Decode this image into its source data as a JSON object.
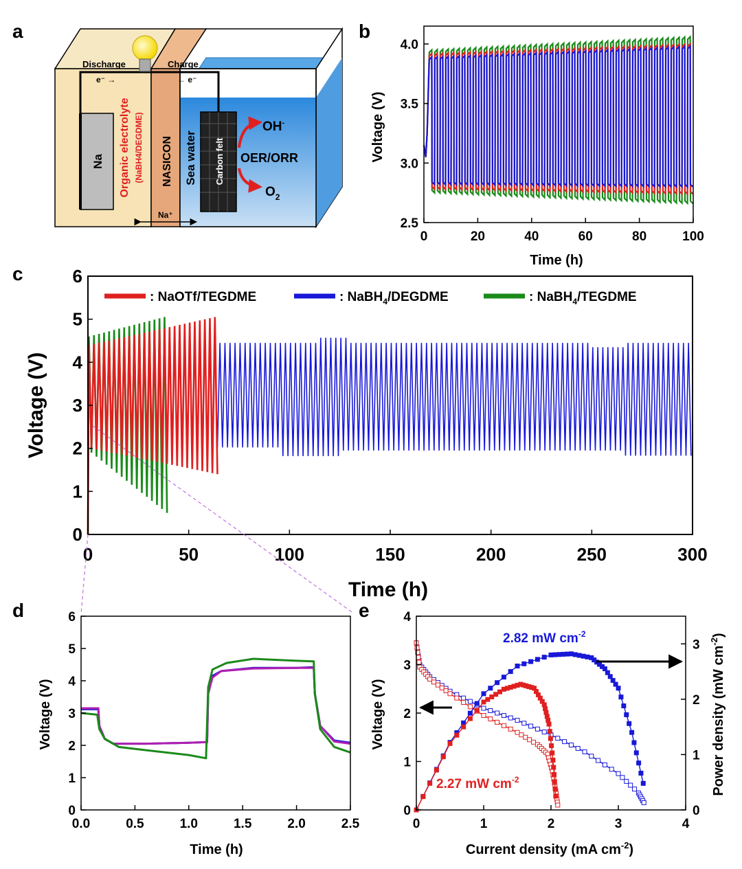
{
  "panels": {
    "a": "a",
    "b": "b",
    "c": "c",
    "d": "d",
    "e": "e"
  },
  "schematic": {
    "discharge": "Discharge",
    "charge": "Charge",
    "electron_left": "e⁻ →",
    "electron_right": "← e⁻",
    "na_electrode": "Na",
    "organic_electrolyte": "Organic electrolyte",
    "organic_electrolyte_sub": "(NaBH4/DEGDME)",
    "nasicon": "NASICON",
    "seawater": "Sea water",
    "carbon_felt": "Carbon felt",
    "oh": "OH",
    "oh_sup": "-",
    "reaction": "OER/ORR",
    "o2": "O",
    "o2_sub": "2",
    "na_ion": "Na⁺",
    "colors": {
      "organic": "#f7e3b5",
      "nasicon": "#e6a77a",
      "water": "#3d96dc",
      "red": "#e02020"
    }
  },
  "chart_data": [
    {
      "id": "b",
      "type": "line",
      "title": "",
      "xlabel": "Time (h)",
      "ylabel": "Voltage (V)",
      "xlim": [
        0,
        100
      ],
      "ylim": [
        2.5,
        4.15
      ],
      "xticks": [
        "0",
        "20",
        "40",
        "60",
        "80",
        "100"
      ],
      "yticks": [
        "2.5",
        "3.0",
        "3.5",
        "4.0"
      ],
      "series": [
        {
          "name": "NaBH4/TEGDME",
          "color": "#1a8a1a",
          "charge_v": [
            3.93,
            4.04
          ],
          "discharge_v": [
            2.77,
            2.68
          ],
          "cycles": 48
        },
        {
          "name": "NaOTf/TEGDME",
          "color": "#e02020",
          "charge_v": [
            3.9,
            3.98
          ],
          "discharge_v": [
            2.8,
            2.76
          ],
          "cycles": 48
        },
        {
          "name": "NaBH4/DEGDME",
          "color": "#1818d8",
          "charge_v": [
            3.87,
            3.96
          ],
          "discharge_v": [
            2.84,
            2.82
          ],
          "cycles": 48
        }
      ]
    },
    {
      "id": "c",
      "type": "line",
      "title": "",
      "xlabel": "Time (h)",
      "ylabel": "Voltage (V)",
      "xlim": [
        0,
        300
      ],
      "ylim": [
        0,
        6
      ],
      "xticks": [
        "0",
        "50",
        "100",
        "150",
        "200",
        "250",
        "300"
      ],
      "yticks": [
        "0",
        "1",
        "2",
        "3",
        "4",
        "5",
        "6"
      ],
      "legend": [
        {
          "label": ": NaOTf/TEGDME",
          "color": "#e02020"
        },
        {
          "label": ": NaBH",
          "sub": "4",
          "tail": "/DEGDME",
          "color": "#1818d8"
        },
        {
          "label": ": NaBH",
          "sub": "4",
          "tail": "/TEGDME",
          "color": "#1a8a1a"
        }
      ],
      "series": [
        {
          "name": "NaBH4/DEGDME",
          "color": "#1818d8",
          "end_h": 300,
          "charge_v": [
            4.4,
            4.45
          ],
          "discharge_v": [
            2.0,
            1.85
          ]
        },
        {
          "name": "NaBH4/TEGDME",
          "color": "#1a8a1a",
          "end_h": 40,
          "charge_v": [
            4.6,
            5.05
          ],
          "discharge_v": [
            1.9,
            0.5
          ]
        },
        {
          "name": "NaOTf/TEGDME",
          "color": "#e02020",
          "end_h": 66,
          "charge_v": [
            4.4,
            5.05
          ],
          "discharge_v": [
            2.0,
            1.4
          ]
        }
      ]
    },
    {
      "id": "d",
      "type": "line",
      "title": "",
      "xlabel": "Time (h)",
      "ylabel": "Voltage (V)",
      "xlim": [
        0,
        2.5
      ],
      "ylim": [
        0,
        6
      ],
      "xticks": [
        "0.0",
        "0.5",
        "1.0",
        "1.5",
        "2.0",
        "2.5"
      ],
      "yticks": [
        "0",
        "1",
        "2",
        "3",
        "4",
        "5",
        "6"
      ],
      "series": [
        {
          "name": "NaBH4/DEGDME",
          "color": "#1818d8",
          "x": [
            0,
            0.16,
            0.17,
            0.22,
            0.3,
            0.6,
            1.0,
            1.17,
            1.18,
            1.22,
            1.3,
            1.6,
            2.0,
            2.16,
            2.17,
            2.22,
            2.35,
            2.5
          ],
          "y": [
            3.12,
            3.12,
            2.6,
            2.2,
            2.05,
            2.05,
            2.08,
            2.1,
            3.6,
            4.15,
            4.3,
            4.4,
            4.4,
            4.42,
            3.6,
            2.6,
            2.15,
            2.08
          ]
        },
        {
          "name": "NaOTf/TEGDME",
          "color": "#b020b0",
          "x": [
            0,
            0.16,
            0.17,
            0.22,
            0.3,
            0.6,
            1.0,
            1.17,
            1.18,
            1.22,
            1.3,
            1.6,
            2.0,
            2.16,
            2.17,
            2.22,
            2.35,
            2.5
          ],
          "y": [
            3.15,
            3.15,
            2.6,
            2.2,
            2.05,
            2.05,
            2.08,
            2.1,
            3.6,
            4.1,
            4.3,
            4.38,
            4.4,
            4.4,
            3.6,
            2.6,
            2.12,
            2.05
          ]
        },
        {
          "name": "NaBH4/TEGDME",
          "color": "#1a8a1a",
          "x": [
            0,
            0.15,
            0.17,
            0.22,
            0.35,
            0.6,
            1.0,
            1.16,
            1.18,
            1.22,
            1.35,
            1.6,
            2.0,
            2.16,
            2.17,
            2.22,
            2.35,
            2.5
          ],
          "y": [
            3.0,
            2.95,
            2.5,
            2.2,
            1.95,
            1.85,
            1.7,
            1.6,
            3.8,
            4.35,
            4.55,
            4.68,
            4.62,
            4.6,
            3.6,
            2.5,
            1.95,
            1.78
          ]
        }
      ]
    },
    {
      "id": "e",
      "type": "line",
      "title": "",
      "xlabel": "Current density (mA cm",
      "xlabel_sup": "-2",
      "xlabel_tail": ")",
      "ylabel": "Voltage (V)",
      "y2label": "Power density (mW cm",
      "y2label_sup": "-2",
      "y2label_tail": ")",
      "xlim": [
        0,
        4
      ],
      "ylim": [
        0,
        4
      ],
      "y2lim": [
        0,
        3.5
      ],
      "xticks": [
        "0",
        "1",
        "2",
        "3",
        "4"
      ],
      "yticks": [
        "0",
        "1",
        "2",
        "3",
        "4"
      ],
      "y2ticks": [
        "0",
        "1",
        "2",
        "3"
      ],
      "series": [
        {
          "name": "voltage blue",
          "axis": "left",
          "color": "#1818d8",
          "marker": "open",
          "x": [
            0,
            0.05,
            0.2,
            0.5,
            1.0,
            1.5,
            2.0,
            2.5,
            3.0,
            3.3,
            3.38
          ],
          "y": [
            3.45,
            3.0,
            2.75,
            2.45,
            2.1,
            1.85,
            1.55,
            1.2,
            0.75,
            0.35,
            0.15
          ]
        },
        {
          "name": "voltage red",
          "axis": "left",
          "color": "#e02020",
          "marker": "open",
          "x": [
            0,
            0.05,
            0.2,
            0.5,
            1.0,
            1.5,
            1.8,
            1.95,
            2.02,
            2.07,
            2.1
          ],
          "y": [
            3.45,
            2.95,
            2.7,
            2.4,
            1.95,
            1.6,
            1.35,
            1.15,
            0.8,
            0.4,
            0.1
          ]
        },
        {
          "name": "power blue",
          "axis": "right",
          "color": "#1818d8",
          "marker": "filled",
          "x": [
            0,
            0.5,
            1.0,
            1.5,
            2.0,
            2.3,
            2.6,
            2.8,
            3.0,
            3.2,
            3.37
          ],
          "y": [
            0,
            1.22,
            2.1,
            2.6,
            2.8,
            2.82,
            2.75,
            2.55,
            2.2,
            1.4,
            0.48
          ]
        },
        {
          "name": "power red",
          "axis": "right",
          "color": "#e02020",
          "marker": "filled",
          "x": [
            0,
            0.5,
            1.0,
            1.3,
            1.55,
            1.75,
            1.9,
            1.97,
            2.03,
            2.07
          ],
          "y": [
            0,
            1.2,
            1.95,
            2.18,
            2.27,
            2.2,
            1.9,
            1.55,
            0.9,
            0.25
          ]
        }
      ],
      "annotations": {
        "blue_value": "2.82 mW cm",
        "blue_sup": "-2",
        "red_value": "2.27 mW cm",
        "red_sup": "-2"
      }
    }
  ]
}
